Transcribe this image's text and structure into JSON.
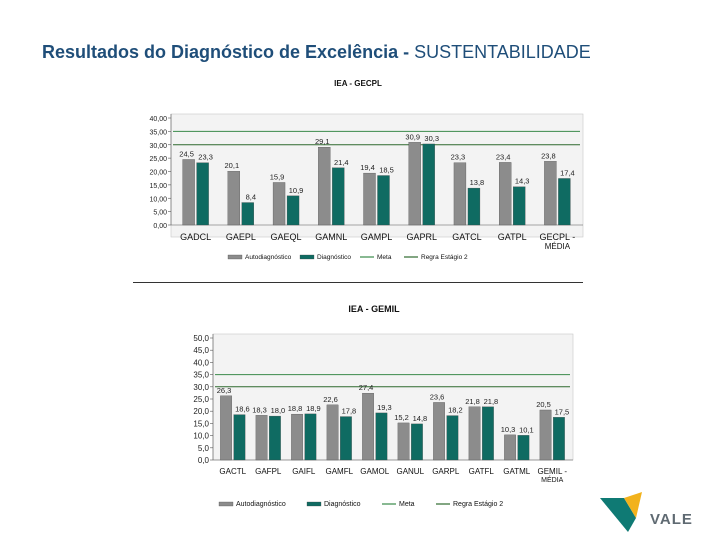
{
  "page": {
    "title_bold": "Resultados do Diagnóstico de Excelência -",
    "title_rest": " SUSTENTABILIDADE",
    "logo_text": "VALE"
  },
  "colors": {
    "title": "#1f4e79",
    "autodiagnostico": "#8c8c8c",
    "diagnostico": "#0f6b62",
    "meta": "#3a8a4a",
    "regra": "#2e6b2e"
  },
  "chart_data": [
    {
      "type": "bar",
      "title": "IEA - GECPL",
      "categories": [
        "GADCL",
        "GAEPL",
        "GAEQL",
        "GAMNL",
        "GAMPL",
        "GAPRL",
        "GATCL",
        "GATPL",
        "GECPL - MÉDIA"
      ],
      "series": [
        {
          "name": "Autodiagnóstico",
          "values": [
            24.5,
            20.1,
            15.9,
            29.1,
            19.4,
            30.9,
            23.3,
            23.4,
            23.8
          ],
          "labels": [
            "24,5",
            "20,1",
            "15,9",
            "29,1",
            "19,4",
            "30,9",
            "23,3",
            "23,4",
            "23,8"
          ]
        },
        {
          "name": "Diagnóstico",
          "values": [
            23.3,
            8.4,
            10.9,
            21.4,
            18.5,
            30.3,
            13.8,
            14.3,
            17.4
          ],
          "labels": [
            "23,3",
            "8,4",
            "10,9",
            "21,4",
            "18,5",
            "30,3",
            "13,8",
            "14,3",
            "17,4"
          ]
        }
      ],
      "reference_lines": [
        {
          "name": "Meta",
          "value": 35.0
        },
        {
          "name": "Regra Estágio 2",
          "value": 30.0
        }
      ],
      "legend": [
        "Autodiagnóstico",
        "Diagnóstico",
        "Meta",
        "Regra Estágio 2"
      ],
      "ylim": [
        0,
        40
      ],
      "yticks": [
        0,
        5,
        10,
        15,
        20,
        25,
        30,
        35,
        40
      ],
      "ytick_labels": [
        "0,00",
        "5,00",
        "10,00",
        "15,00",
        "20,00",
        "25,00",
        "30,00",
        "35,00",
        "40,00"
      ],
      "legend_position": "bottom"
    },
    {
      "type": "bar",
      "title": "IEA - GEMIL",
      "categories": [
        "GACTL",
        "GAFPL",
        "GAIFL",
        "GAMFL",
        "GAMOL",
        "GANUL",
        "GARPL",
        "GATFL",
        "GATML",
        "GEMIL - MÉDIA"
      ],
      "series": [
        {
          "name": "Autodiagnóstico",
          "values": [
            26.3,
            18.3,
            18.8,
            22.6,
            27.4,
            15.2,
            23.6,
            21.8,
            10.3,
            20.5
          ],
          "labels": [
            "26,3",
            "18,3",
            "18,8",
            "22,6",
            "27,4",
            "15,2",
            "23,6",
            "21,8",
            "10,3",
            "20,5"
          ]
        },
        {
          "name": "Diagnóstico",
          "values": [
            18.6,
            18.0,
            18.9,
            17.8,
            19.3,
            14.8,
            18.2,
            21.8,
            10.1,
            17.5
          ],
          "labels": [
            "18,6",
            "18,0",
            "18,9",
            "17,8",
            "19,3",
            "14,8",
            "18,2",
            "21,8",
            "10,1",
            "17,5"
          ]
        }
      ],
      "reference_lines": [
        {
          "name": "Meta",
          "value": 35.0
        },
        {
          "name": "Regra Estágio 2",
          "value": 30.0
        }
      ],
      "legend": [
        "Autodiagnóstico",
        "Diagnóstico",
        "Meta",
        "Regra Estágio 2"
      ],
      "ylim": [
        0,
        50
      ],
      "yticks": [
        0,
        5,
        10,
        15,
        20,
        25,
        30,
        35,
        40,
        45,
        50
      ],
      "ytick_labels": [
        "0,0",
        "5,0",
        "10,0",
        "15,0",
        "20,0",
        "25,0",
        "30,0",
        "35,0",
        "40,0",
        "45,0",
        "50,0"
      ],
      "legend_position": "bottom"
    }
  ]
}
